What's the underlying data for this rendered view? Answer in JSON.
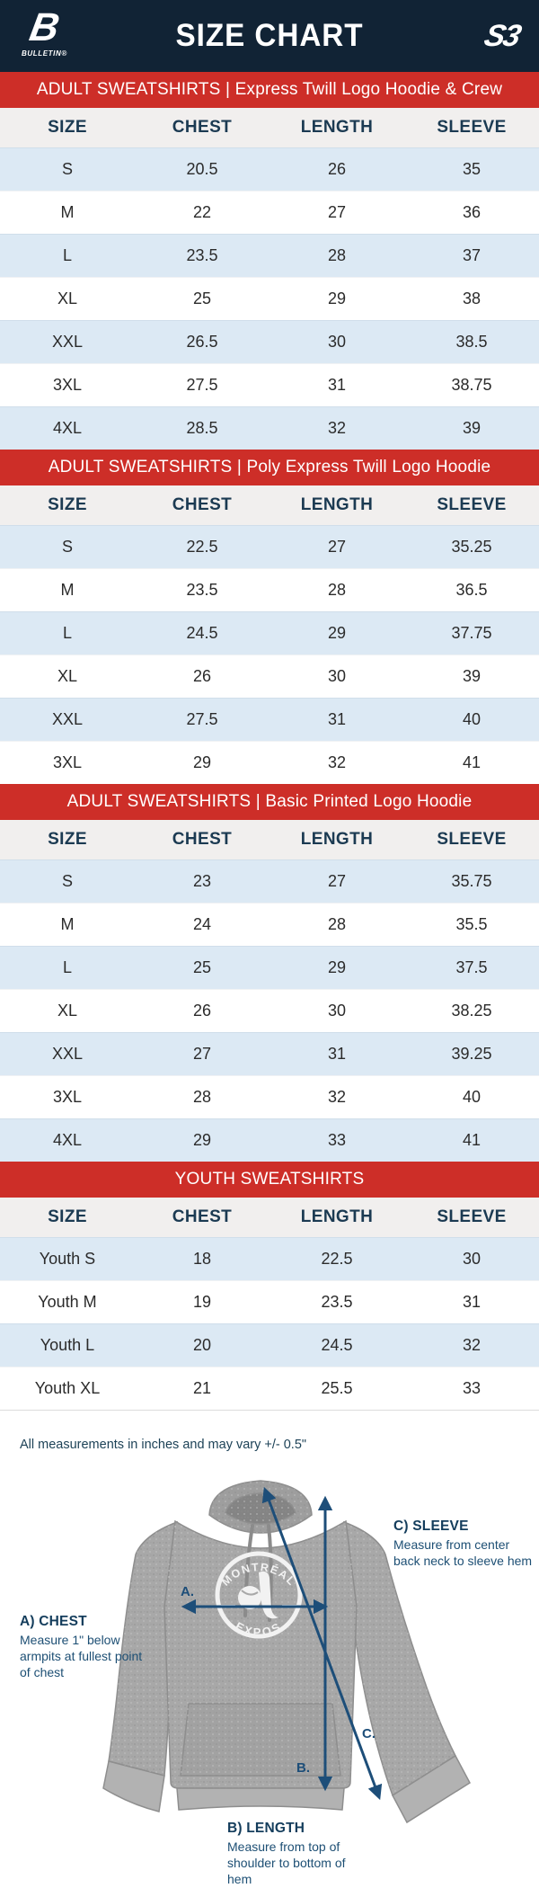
{
  "header": {
    "title": "SIZE CHART",
    "left_logo_letter": "B",
    "left_logo_word": "BULLETIN®",
    "right_logo": "S3"
  },
  "columns": [
    "SIZE",
    "CHEST",
    "LENGTH",
    "SLEEVE"
  ],
  "tables": [
    {
      "banner": "ADULT SWEATSHIRTS | Express Twill Logo Hoodie & Crew",
      "rows": [
        [
          "S",
          "20.5",
          "26",
          "35"
        ],
        [
          "M",
          "22",
          "27",
          "36"
        ],
        [
          "L",
          "23.5",
          "28",
          "37"
        ],
        [
          "XL",
          "25",
          "29",
          "38"
        ],
        [
          "XXL",
          "26.5",
          "30",
          "38.5"
        ],
        [
          "3XL",
          "27.5",
          "31",
          "38.75"
        ],
        [
          "4XL",
          "28.5",
          "32",
          "39"
        ]
      ]
    },
    {
      "banner": "ADULT SWEATSHIRTS | Poly Express Twill Logo Hoodie",
      "rows": [
        [
          "S",
          "22.5",
          "27",
          "35.25"
        ],
        [
          "M",
          "23.5",
          "28",
          "36.5"
        ],
        [
          "L",
          "24.5",
          "29",
          "37.75"
        ],
        [
          "XL",
          "26",
          "30",
          "39"
        ],
        [
          "XXL",
          "27.5",
          "31",
          "40"
        ],
        [
          "3XL",
          "29",
          "32",
          "41"
        ]
      ]
    },
    {
      "banner": "ADULT SWEATSHIRTS | Basic Printed Logo Hoodie",
      "rows": [
        [
          "S",
          "23",
          "27",
          "35.75"
        ],
        [
          "M",
          "24",
          "28",
          "35.5"
        ],
        [
          "L",
          "25",
          "29",
          "37.5"
        ],
        [
          "XL",
          "26",
          "30",
          "38.25"
        ],
        [
          "XXL",
          "27",
          "31",
          "39.25"
        ],
        [
          "3XL",
          "28",
          "32",
          "40"
        ],
        [
          "4XL",
          "29",
          "33",
          "41"
        ]
      ]
    },
    {
      "banner": "YOUTH SWEATSHIRTS",
      "rows": [
        [
          "Youth S",
          "18",
          "22.5",
          "30"
        ],
        [
          "Youth M",
          "19",
          "23.5",
          "31"
        ],
        [
          "Youth L",
          "20",
          "24.5",
          "32"
        ],
        [
          "Youth XL",
          "21",
          "25.5",
          "33"
        ]
      ]
    }
  ],
  "note": "All measurements in inches and may vary +/- 0.5\"",
  "diagram": {
    "chest_label": "A) CHEST",
    "chest_desc": "Measure 1\" below armpits at fullest point of chest",
    "length_label": "B) LENGTH",
    "length_desc": "Measure from top of shoulder to bottom of hem",
    "sleeve_label": "C) SLEEVE",
    "sleeve_desc": "Measure from center back neck to sleeve hem",
    "marker_a": "A.",
    "marker_b": "B.",
    "marker_c": "C.",
    "shirt_logo_top": "MONTRÉAL",
    "shirt_logo_bottom": "EXPOS"
  },
  "colors": {
    "header_navy": "#112335",
    "banner_red": "#cd2e28",
    "row_blue": "#dce9f4",
    "header_row_gray": "#f1efee",
    "diagram_blue": "#1d4e79"
  }
}
